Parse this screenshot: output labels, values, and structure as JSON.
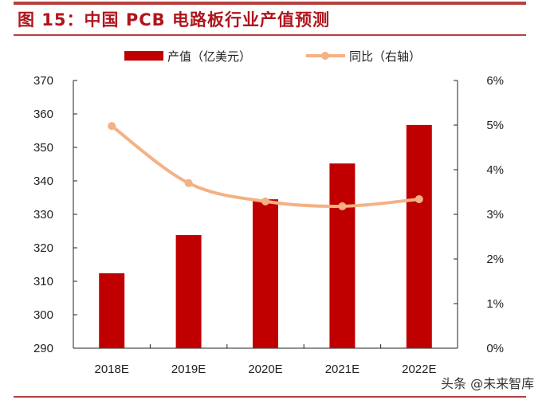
{
  "title": "图 15：中国 PCB 电路板行业产值预测",
  "watermark": "头条 @未来智库",
  "chart_data": {
    "type": "bar+line",
    "categories": [
      "2018E",
      "2019E",
      "2020E",
      "2021E",
      "2022E"
    ],
    "series": [
      {
        "name": "产值（亿美元）",
        "type": "bar",
        "axis": "left",
        "color": "#c00000",
        "values": [
          312.4,
          323.8,
          334.5,
          345.2,
          356.7
        ]
      },
      {
        "name": "同比（右轴）",
        "type": "line",
        "axis": "right",
        "color": "#f4b183",
        "smooth": true,
        "values": [
          4.98,
          3.7,
          3.29,
          3.18,
          3.34
        ]
      }
    ],
    "left_axis": {
      "ylim": [
        290,
        370
      ],
      "ticks": [
        "290",
        "300",
        "310",
        "320",
        "330",
        "340",
        "350",
        "360",
        "370"
      ]
    },
    "right_axis": {
      "ylim": [
        0,
        6
      ],
      "ticks": [
        "0%",
        "1%",
        "2%",
        "3%",
        "4%",
        "5%",
        "6%"
      ]
    },
    "legend": "top",
    "grid": false
  }
}
